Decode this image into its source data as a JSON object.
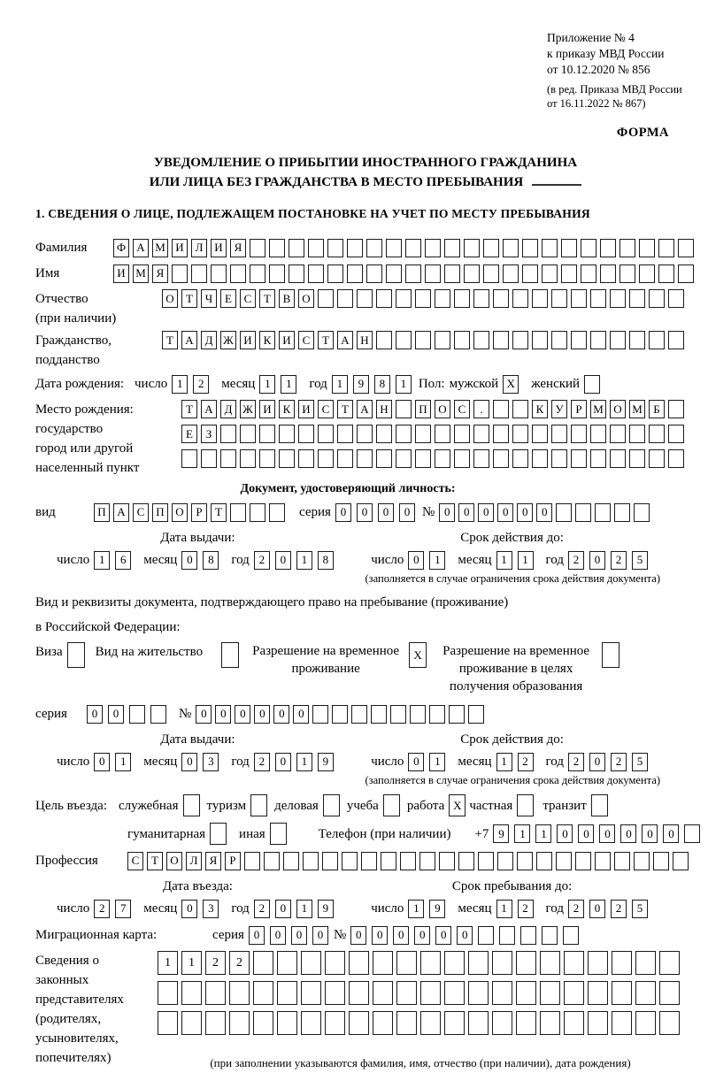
{
  "labels": {
    "day": "число",
    "month": "месяц",
    "year": "год",
    "series": "серия",
    "number": "№"
  },
  "header": {
    "appendix": [
      "Приложение № 4",
      "к приказу МВД России",
      "от 10.12.2020 № 856"
    ],
    "revision": [
      "(в ред. Приказа МВД России",
      "от 16.11.2022 № 867)"
    ],
    "form_label": "ФОРМА"
  },
  "title": {
    "line1": "УВЕДОМЛЕНИЕ О ПРИБЫТИИ ИНОСТРАННОГО ГРАЖДАНИНА",
    "line2": "ИЛИ ЛИЦА БЕЗ ГРАЖДАНСТВА В МЕСТО ПРЕБЫВАНИЯ"
  },
  "section1_heading": "1. СВЕДЕНИЯ О ЛИЦЕ, ПОДЛЕЖАЩЕМ ПОСТАНОВКЕ НА УЧЕТ ПО МЕСТУ ПРЕБЫВАНИЯ",
  "person": {
    "surname": {
      "label": "Фамилия",
      "text": "ФАМИЛИЯ",
      "length": 30
    },
    "given_name": {
      "label": "Имя",
      "text": "ИМЯ",
      "length": 30
    },
    "patronymic": {
      "label": "Отчество",
      "label2": "(при наличии)",
      "text": "ОТЧЕСТВО",
      "length": 27
    },
    "citizenship": {
      "label": "Гражданство,",
      "label2": "подданство",
      "text": "ТАДЖИКИСТАН",
      "length": 27
    },
    "birth_date": {
      "label": "Дата рождения:",
      "day": "12",
      "month": "11",
      "year": "1981"
    },
    "sex": {
      "label": "Пол:",
      "male_label": "мужской",
      "male": "X",
      "female_label": "женский",
      "female": ""
    },
    "birth_place": {
      "label1": "Место рождения:",
      "label2": "государство",
      "label3": "город или другой",
      "label4": "населенный пункт",
      "row1": {
        "text": "ТАДЖИКИСТАН ПОС.  КУРМОМБ",
        "length": 26
      },
      "row2": {
        "text": "ЕЗ",
        "length": 26
      },
      "row3": {
        "text": "",
        "length": 26
      }
    }
  },
  "identity_doc": {
    "heading": "Документ, удостоверяющий личность:",
    "type": {
      "label": "вид",
      "text": "ПАСПОРТ",
      "length": 10
    },
    "series": {
      "text": "0000",
      "length": 4
    },
    "number": {
      "text": "000000",
      "length": 11
    },
    "issue": {
      "heading": "Дата выдачи:",
      "day": "16",
      "month": "08",
      "year": "2018"
    },
    "valid_until": {
      "heading": "Срок действия до:",
      "day": "01",
      "month": "11",
      "year": "2025"
    },
    "note": "(заполняется в случае ограничения срока действия документа)"
  },
  "residence_doc": {
    "intro1": "Вид и реквизиты документа, подтверждающего право на пребывание (проживание)",
    "intro2": "в Российской Федерации:",
    "options": [
      {
        "label": "Виза",
        "checked": ""
      },
      {
        "label": "Вид на жительство",
        "checked": ""
      },
      {
        "label": "Разрешение на временное проживание",
        "checked": "X"
      },
      {
        "label": "Разрешение на временное проживание в целях получения образования",
        "checked": ""
      }
    ],
    "series": {
      "text": "00",
      "length": 4
    },
    "number": {
      "text": "000000",
      "length": 15
    },
    "issue": {
      "heading": "Дата выдачи:",
      "day": "01",
      "month": "03",
      "year": "2019"
    },
    "valid_until": {
      "heading": "Срок действия до:",
      "day": "01",
      "month": "12",
      "year": "2025"
    },
    "note": "(заполняется в случае ограничения срока действия документа)"
  },
  "visit": {
    "purpose_label": "Цель въезда:",
    "purpose_options": [
      {
        "label": "служебная",
        "checked": ""
      },
      {
        "label": "туризм",
        "checked": ""
      },
      {
        "label": "деловая",
        "checked": ""
      },
      {
        "label": "учеба",
        "checked": ""
      },
      {
        "label": "работа",
        "checked": "X"
      },
      {
        "label": "частная",
        "checked": ""
      },
      {
        "label": "транзит",
        "checked": ""
      },
      {
        "label": "гуманитарная",
        "checked": ""
      },
      {
        "label": "иная",
        "checked": ""
      }
    ],
    "phone": {
      "label": "Телефон (при наличии)",
      "prefix": "+7",
      "text": "911000000",
      "length": 10
    },
    "profession": {
      "label": "Профессия",
      "text": "СТОЛЯР",
      "length": 29
    },
    "entry_date": {
      "heading": "Дата въезда:",
      "day": "27",
      "month": "03",
      "year": "2019"
    },
    "stay_until": {
      "heading": "Срок пребывания до:",
      "day": "19",
      "month": "12",
      "year": "2025"
    },
    "migration_card": {
      "label": "Миграционная карта:",
      "series": {
        "text": "0000",
        "length": 4
      },
      "number": {
        "text": "000000",
        "length": 11
      }
    }
  },
  "representatives": {
    "label_lines": [
      "Сведения о",
      "законных",
      "представителях",
      "(родителях,",
      "усыновителях,",
      "попечителях)"
    ],
    "row1": {
      "text": "1122",
      "length": 22
    },
    "row2": {
      "text": "",
      "length": 22
    },
    "row3": {
      "text": "",
      "length": 22
    },
    "note": "(при заполнении указываются фамилия, имя, отчество (при наличии), дата рождения)"
  }
}
